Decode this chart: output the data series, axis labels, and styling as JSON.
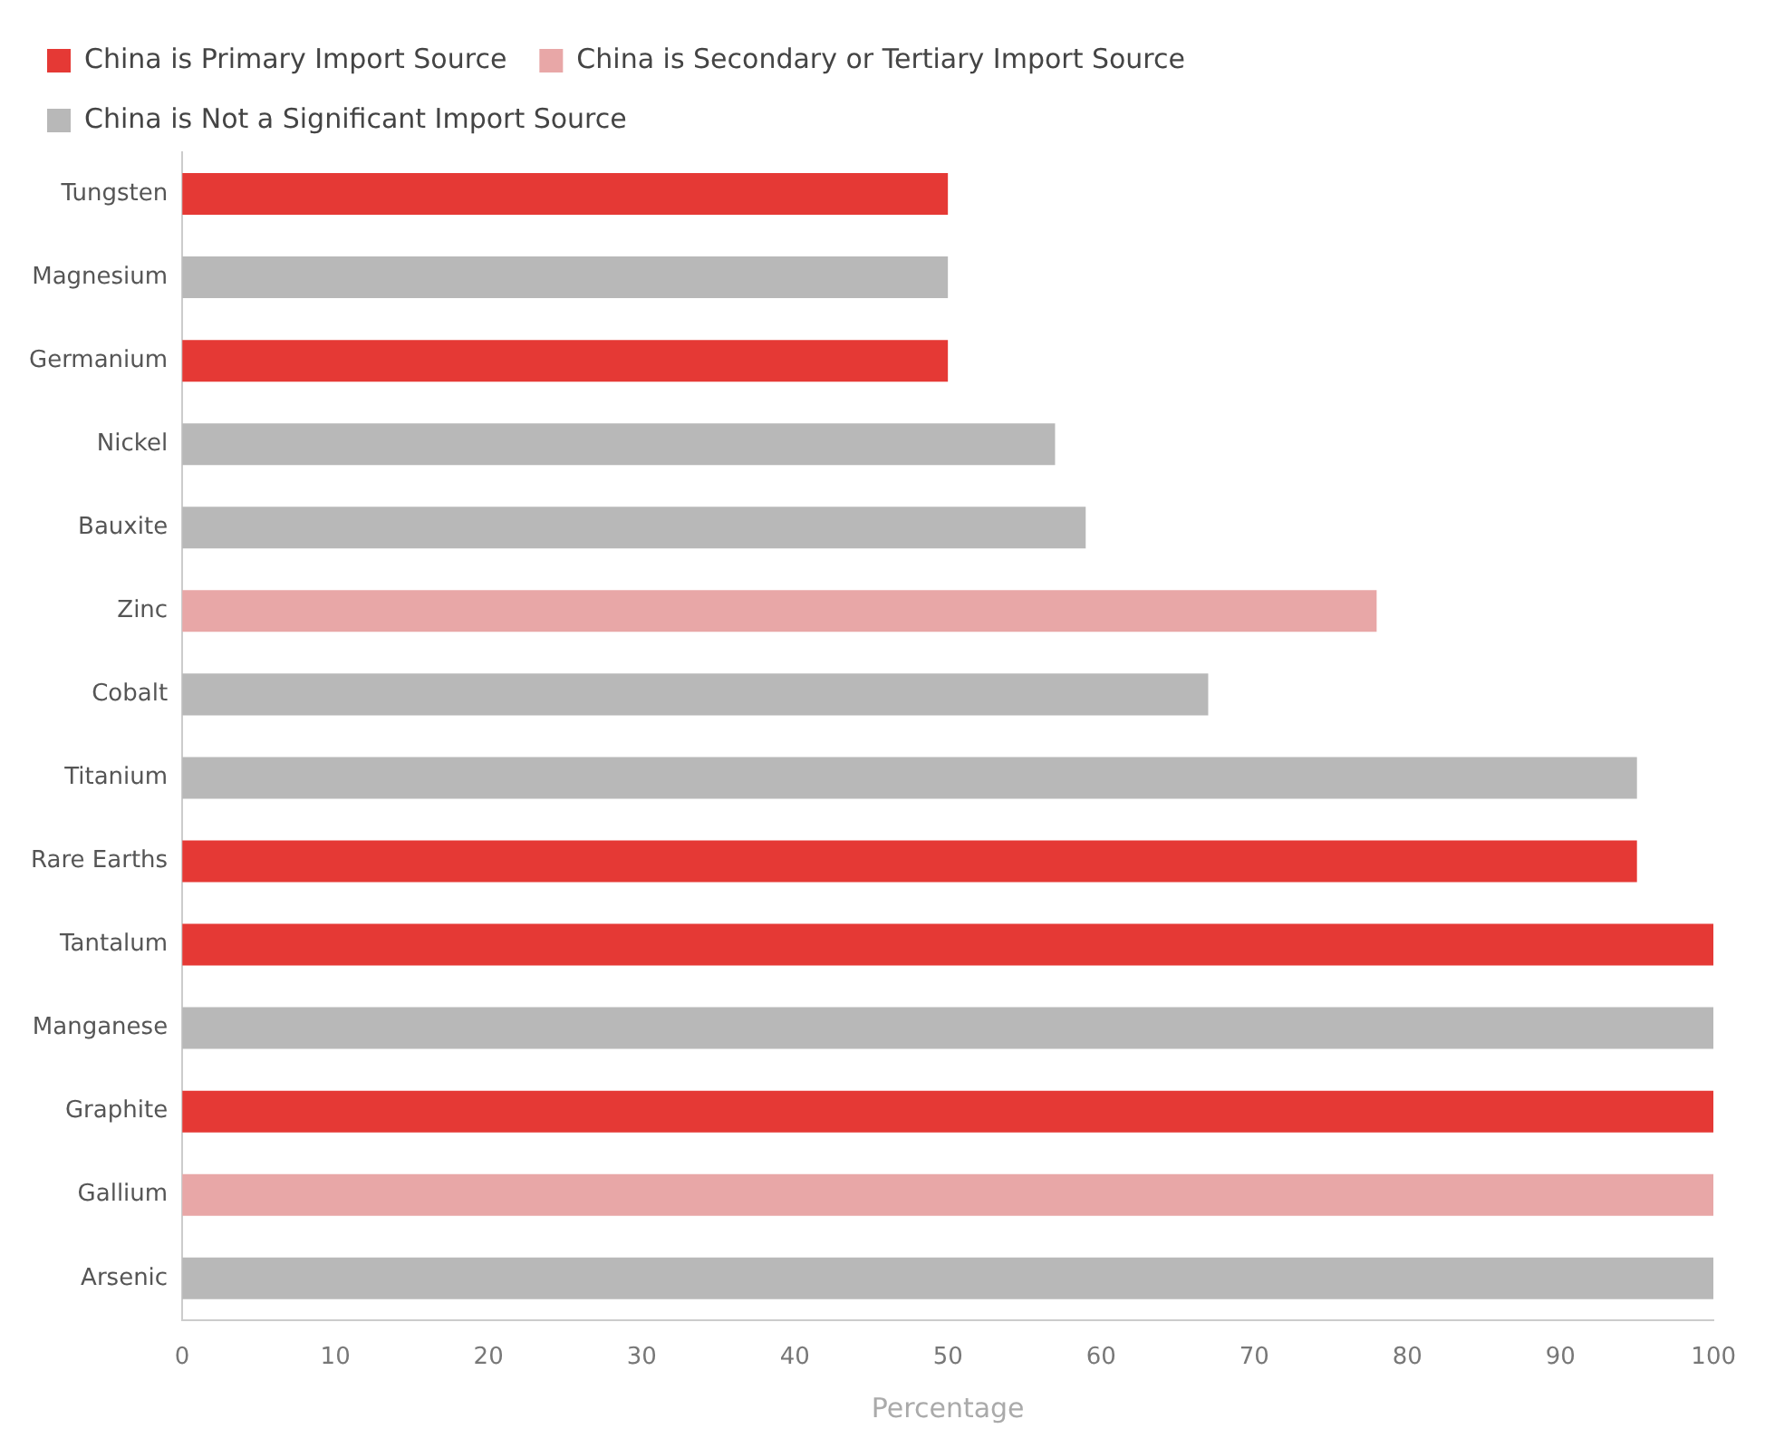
{
  "chart_data": {
    "type": "bar",
    "orientation": "horizontal",
    "xlabel": "Percentage",
    "categories": [
      "Tungsten",
      "Magnesium",
      "Germanium",
      "Nickel",
      "Bauxite",
      "Zinc",
      "Cobalt",
      "Titanium",
      "Rare Earths",
      "Tantalum",
      "Manganese",
      "Graphite",
      "Gallium",
      "Arsenic"
    ],
    "series": [
      {
        "name": "China is Primary Import Source",
        "color": "#e53935",
        "values": [
          50,
          null,
          50,
          null,
          null,
          null,
          null,
          null,
          95,
          100,
          null,
          100,
          null,
          null
        ]
      },
      {
        "name": "China is Secondary or Tertiary Import Source",
        "color": "#e8a7a7",
        "values": [
          null,
          null,
          null,
          null,
          null,
          78,
          null,
          null,
          null,
          null,
          null,
          null,
          100,
          null
        ]
      },
      {
        "name": "China is Not a Significant Import Source",
        "color": "#b8b8b8",
        "values": [
          null,
          50,
          null,
          57,
          59,
          null,
          67,
          95,
          null,
          null,
          100,
          null,
          null,
          100
        ]
      }
    ],
    "xlim": [
      0,
      100
    ],
    "xticks": [
      0,
      10,
      20,
      30,
      40,
      50,
      60,
      70,
      80,
      90,
      100
    ],
    "grid": false,
    "legend": "top left"
  }
}
